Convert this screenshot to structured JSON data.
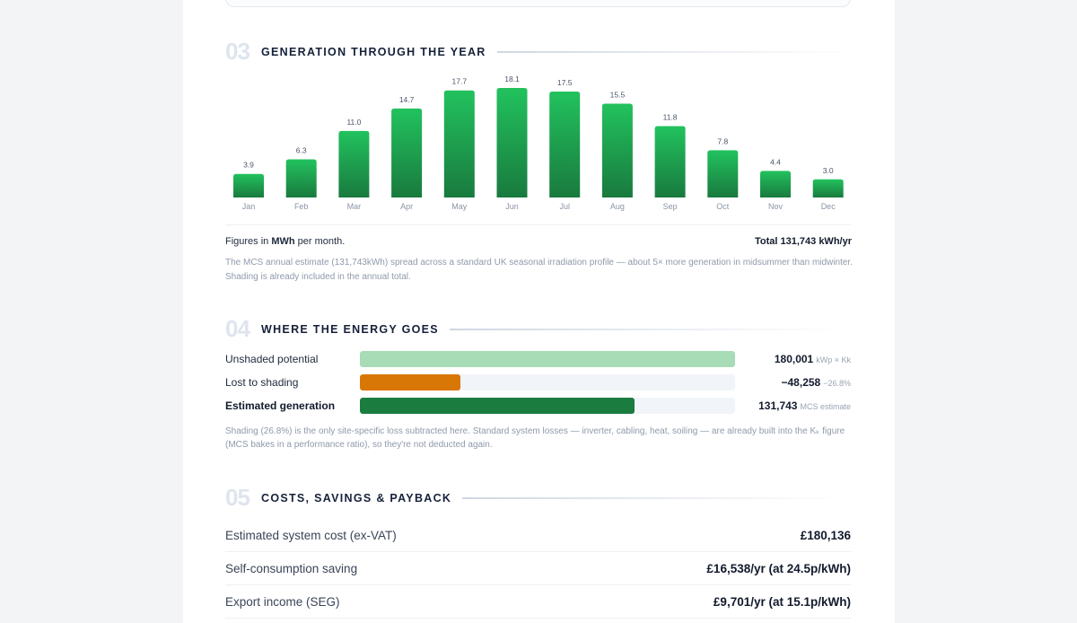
{
  "sections": {
    "generation": {
      "num": "03",
      "title": "GENERATION THROUGH THE YEAR"
    },
    "energy": {
      "num": "04",
      "title": "WHERE THE ENERGY GOES"
    },
    "costs": {
      "num": "05",
      "title": "COSTS, SAVINGS & PAYBACK"
    }
  },
  "chart_data": {
    "type": "bar",
    "categories": [
      "Jan",
      "Feb",
      "Mar",
      "Apr",
      "May",
      "Jun",
      "Jul",
      "Aug",
      "Sep",
      "Oct",
      "Nov",
      "Dec"
    ],
    "values": [
      3.9,
      6.3,
      11.0,
      14.7,
      17.7,
      18.1,
      17.5,
      15.5,
      11.8,
      7.8,
      4.4,
      3.0
    ],
    "value_labels": [
      "3.9",
      "6.3",
      "11.0",
      "14.7",
      "17.7",
      "18.1",
      "17.5",
      "15.5",
      "11.8",
      "7.8",
      "4.4",
      "3.0"
    ],
    "title": "",
    "xlabel": "",
    "ylabel": "",
    "ylim": [
      0,
      18.1
    ],
    "grid": false,
    "colors": {
      "top": "#22c25e",
      "bottom": "#197a3e"
    }
  },
  "figures_note": {
    "prefix": "Figures in ",
    "unit": "MWh",
    "suffix": " per month."
  },
  "total": "Total 131,743 kWh/yr",
  "chart_description": "The MCS annual estimate (131,743kWh) spread across a standard UK seasonal irradiation profile — about 5× more generation in midsummer than midwinter. Shading is already included in the annual total.",
  "energy_rows": [
    {
      "label": "Unshaded potential",
      "value": "180,001",
      "unit": "kWp × Kk",
      "fraction": 1.0,
      "color": "#a7dcb7",
      "bold": false
    },
    {
      "label": "Lost to shading",
      "value": "−48,258",
      "unit": "−26.8%",
      "fraction": 0.268,
      "color": "#d97706",
      "bold": false
    },
    {
      "label": "Estimated generation",
      "value": "131,743",
      "unit": "MCS estimate",
      "fraction": 0.732,
      "color": "#1a7d3f",
      "bold": true
    }
  ],
  "energy_description": "Shading (26.8%) is the only site-specific loss subtracted here. Standard system losses — inverter, cabling, heat, soiling — are already built into the Kₖ figure (MCS bakes in a performance ratio), so they're not deducted again.",
  "cost_rows": [
    {
      "label": "Estimated system cost (ex-VAT)",
      "value": "£180,136"
    },
    {
      "label": "Self-consumption saving",
      "value": "£16,538/yr (at 24.5p/kWh)"
    },
    {
      "label": "Export income (SEG)",
      "value": "£9,701/yr (at 15.1p/kWh)"
    }
  ]
}
